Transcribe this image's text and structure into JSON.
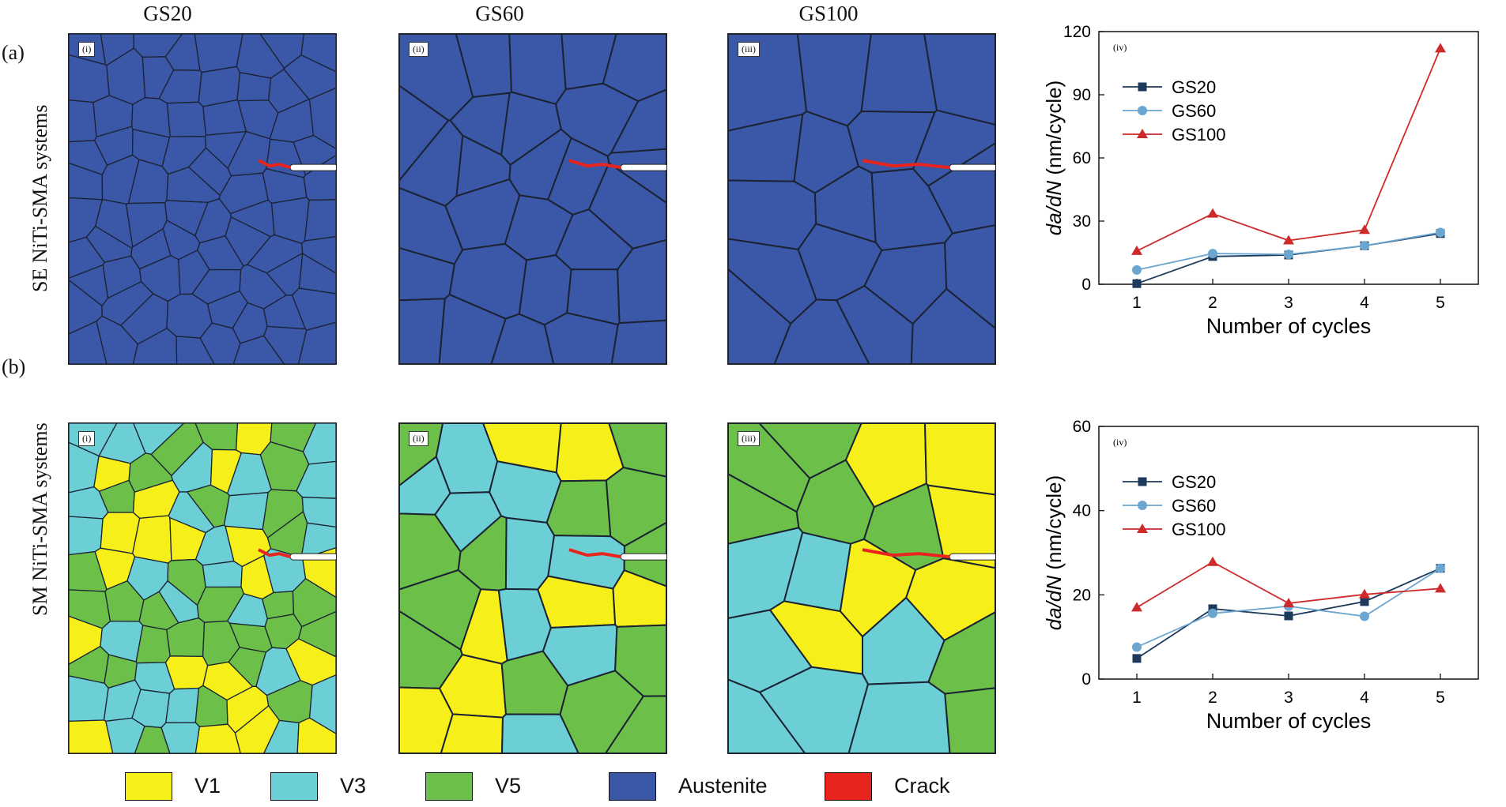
{
  "columns": [
    "GS20",
    "GS60",
    "GS100"
  ],
  "rows": [
    {
      "tag": "(a)",
      "side": "SE NiTi-SMA systems"
    },
    {
      "tag": "(b)",
      "side": "SM NiTi-SMA systems"
    }
  ],
  "panel_tags": [
    "(i)",
    "(ii)",
    "(iii)"
  ],
  "legend": [
    {
      "label": "V1",
      "color": "#f7ef1a"
    },
    {
      "label": "V3",
      "color": "#6ccfd6"
    },
    {
      "label": "V5",
      "color": "#6cc04a"
    },
    {
      "label": "Austenite",
      "color": "#3a57a8"
    },
    {
      "label": "Crack",
      "color": "#e8241f"
    }
  ],
  "chart_data": [
    {
      "type": "line",
      "tag": "(iv)",
      "xlabel": "Number of cycles",
      "ylabel_pre": "da/dN",
      "ylabel_post": " (nm/cycle)",
      "categories": [
        1,
        2,
        3,
        4,
        5
      ],
      "ylim": [
        0,
        120
      ],
      "yticks": [
        0,
        30,
        60,
        90,
        120
      ],
      "series": [
        {
          "name": "GS20",
          "color": "#1c3a5c",
          "marker": "square",
          "values": [
            0.3,
            13.2,
            13.9,
            18.3,
            24.1
          ]
        },
        {
          "name": "GS60",
          "color": "#6aa6cf",
          "marker": "circle",
          "values": [
            6.8,
            14.6,
            14.2,
            18.3,
            24.6
          ]
        },
        {
          "name": "GS100",
          "color": "#cf2a2a",
          "marker": "triangle",
          "values": [
            15.8,
            33.5,
            20.8,
            25.8,
            112.0
          ]
        }
      ]
    },
    {
      "type": "line",
      "tag": "(iv)",
      "xlabel": "Number of cycles",
      "ylabel_pre": "da/dN",
      "ylabel_post": " (nm/cycle)",
      "categories": [
        1,
        2,
        3,
        4,
        5
      ],
      "ylim": [
        0,
        60
      ],
      "yticks": [
        0,
        20,
        40,
        60
      ],
      "series": [
        {
          "name": "GS20",
          "color": "#1c3a5c",
          "marker": "square",
          "values": [
            4.9,
            16.7,
            15.0,
            18.4,
            26.3
          ]
        },
        {
          "name": "GS60",
          "color": "#6aa6cf",
          "marker": "circle",
          "values": [
            7.6,
            15.6,
            17.3,
            14.9,
            26.3
          ]
        },
        {
          "name": "GS100",
          "color": "#cf2a2a",
          "marker": "triangle",
          "values": [
            17.0,
            27.8,
            18.0,
            20.1,
            21.5
          ]
        }
      ]
    }
  ]
}
